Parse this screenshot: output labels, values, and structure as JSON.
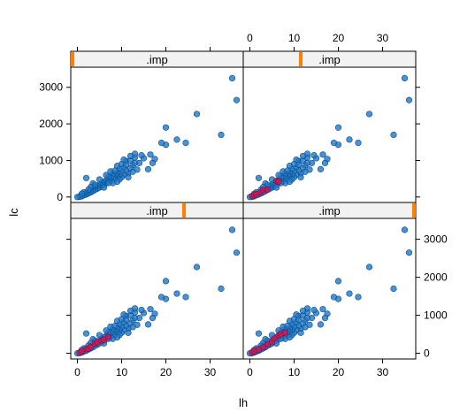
{
  "chart_data": {
    "type": "scatter",
    "xlabel": "lh",
    "ylabel": "lc",
    "xlim": [
      -1.5,
      37.5
    ],
    "ylim": [
      -150,
      3550
    ],
    "x_ticks": [
      0,
      10,
      20,
      30
    ],
    "y_ticks": [
      0,
      1000,
      2000,
      3000
    ],
    "layout": "2x2",
    "colors": {
      "observed": "#1f77c8",
      "imputed": "#c8185a",
      "strip_bg": "#f2f2f2",
      "strip_marker": "#ff7f00"
    },
    "panels": [
      {
        "strip": ".imp",
        "imp_index": 0,
        "strip_marker_fraction": 0.0
      },
      {
        "strip": ".imp",
        "imp_index": 1,
        "strip_marker_fraction": 0.33
      },
      {
        "strip": ".imp",
        "imp_index": 2,
        "strip_marker_fraction": 0.66
      },
      {
        "strip": ".imp",
        "imp_index": 3,
        "strip_marker_fraction": 1.0
      }
    ],
    "observed": [
      [
        36,
        2650
      ],
      [
        35,
        3250
      ],
      [
        32.5,
        1700
      ],
      [
        27,
        2270
      ],
      [
        24.5,
        1480
      ],
      [
        22.5,
        1570
      ],
      [
        20,
        1900
      ],
      [
        20,
        1430
      ],
      [
        19,
        1480
      ],
      [
        17.5,
        1040
      ],
      [
        17,
        930
      ],
      [
        16,
        760
      ],
      [
        15,
        1060
      ],
      [
        14,
        930
      ],
      [
        13,
        1080
      ],
      [
        13,
        1180
      ],
      [
        12.5,
        870
      ],
      [
        12,
        780
      ],
      [
        11.5,
        650
      ],
      [
        11,
        980
      ],
      [
        11,
        720
      ],
      [
        10.5,
        810
      ],
      [
        10.5,
        610
      ],
      [
        10,
        700
      ],
      [
        10,
        540
      ],
      [
        9.5,
        760
      ],
      [
        9.5,
        620
      ],
      [
        9,
        660
      ],
      [
        9,
        560
      ],
      [
        8.5,
        600
      ],
      [
        8.5,
        480
      ],
      [
        8,
        560
      ],
      [
        8,
        640
      ],
      [
        7.5,
        520
      ],
      [
        7.5,
        430
      ],
      [
        7,
        470
      ],
      [
        7,
        550
      ],
      [
        6.5,
        450
      ],
      [
        6.5,
        380
      ],
      [
        6,
        420
      ],
      [
        6,
        340
      ],
      [
        5.5,
        380
      ],
      [
        5.5,
        310
      ],
      [
        5,
        330
      ],
      [
        5,
        260
      ],
      [
        4.5,
        290
      ],
      [
        4.5,
        230
      ],
      [
        4,
        250
      ],
      [
        4,
        200
      ],
      [
        3.5,
        210
      ],
      [
        3.5,
        160
      ],
      [
        3,
        170
      ],
      [
        3,
        130
      ],
      [
        2.5,
        140
      ],
      [
        2.5,
        100
      ],
      [
        2,
        110
      ],
      [
        2,
        70
      ],
      [
        1.5,
        70
      ],
      [
        1.5,
        50
      ],
      [
        1,
        40
      ],
      [
        1,
        20
      ],
      [
        0.5,
        15
      ],
      [
        0.5,
        5
      ],
      [
        0,
        0
      ],
      [
        2,
        520
      ],
      [
        3.5,
        370
      ],
      [
        5,
        480
      ],
      [
        6.5,
        600
      ],
      [
        7.5,
        700
      ],
      [
        9,
        850
      ],
      [
        10,
        900
      ],
      [
        11,
        880
      ],
      [
        12,
        1000
      ],
      [
        13.5,
        750
      ],
      [
        14.5,
        1140
      ],
      [
        16.5,
        1160
      ],
      [
        11.5,
        540
      ],
      [
        12.5,
        690
      ],
      [
        8,
        380
      ],
      [
        9.5,
        480
      ],
      [
        6,
        260
      ],
      [
        4,
        330
      ],
      [
        3,
        270
      ],
      [
        2.5,
        200
      ],
      [
        1.5,
        130
      ],
      [
        1,
        90
      ],
      [
        7,
        380
      ],
      [
        8.5,
        720
      ],
      [
        10.5,
        1020
      ],
      [
        12,
        1120
      ],
      [
        13,
        930
      ],
      [
        9,
        420
      ]
    ],
    "imputed": [
      [],
      [
        [
          0.5,
          30
        ],
        [
          1,
          60
        ],
        [
          1.5,
          80
        ],
        [
          2.5,
          130
        ],
        [
          3,
          190
        ],
        [
          4,
          200
        ],
        [
          6,
          440
        ],
        [
          6.5,
          420
        ]
      ],
      [
        [
          0.5,
          20
        ],
        [
          1,
          50
        ],
        [
          2,
          110
        ],
        [
          2.5,
          120
        ],
        [
          3,
          170
        ],
        [
          4,
          260
        ],
        [
          4.5,
          290
        ],
        [
          5.5,
          330
        ],
        [
          6,
          360
        ],
        [
          7,
          430
        ]
      ],
      [
        [
          0.5,
          25
        ],
        [
          1,
          60
        ],
        [
          2,
          100
        ],
        [
          3,
          160
        ],
        [
          4,
          240
        ],
        [
          5,
          300
        ],
        [
          5.5,
          390
        ],
        [
          6.5,
          470
        ],
        [
          7,
          500
        ],
        [
          8,
          540
        ]
      ]
    ]
  }
}
